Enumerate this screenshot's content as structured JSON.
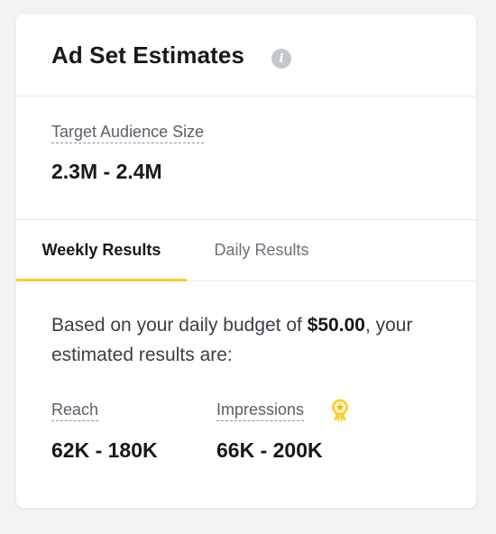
{
  "header": {
    "title": "Ad Set Estimates",
    "info_icon_glyph": "i"
  },
  "audience": {
    "label": "Target Audience Size",
    "value": "2.3M - 2.4M"
  },
  "tabs": [
    {
      "label": "Weekly Results",
      "active": true
    },
    {
      "label": "Daily Results",
      "active": false
    }
  ],
  "results": {
    "description_prefix": "Based on your daily budget of ",
    "budget": "$50.00",
    "description_suffix": ", your estimated results are:",
    "metrics": [
      {
        "label": "Reach",
        "value": "62K - 180K"
      },
      {
        "label": "Impressions",
        "value": "66K - 200K",
        "icon": "award-badge-icon"
      }
    ]
  },
  "colors": {
    "accent": "#ffcd2e",
    "background": "#f2f3f5",
    "card": "#ffffff"
  }
}
